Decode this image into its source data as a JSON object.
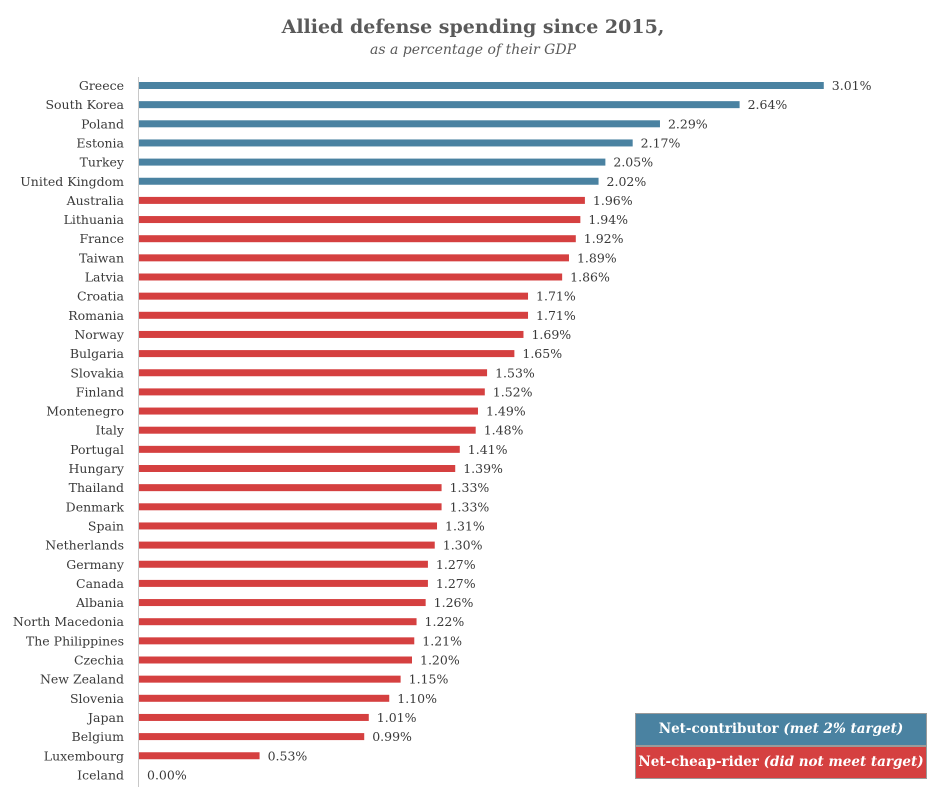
{
  "chart_data": {
    "type": "bar",
    "orientation": "horizontal",
    "title": "Allied defense spending since 2015,",
    "subtitle": "as a percentage of their GDP",
    "categories": [
      "Greece",
      "South Korea",
      "Poland",
      "Estonia",
      "Turkey",
      "United Kingdom",
      "Australia",
      "Lithuania",
      "France",
      "Taiwan",
      "Latvia",
      "Croatia",
      "Romania",
      "Norway",
      "Bulgaria",
      "Slovakia",
      "Finland",
      "Montenegro",
      "Italy",
      "Portugal",
      "Hungary",
      "Thailand",
      "Denmark",
      "Spain",
      "Netherlands",
      "Germany",
      "Canada",
      "Albania",
      "North Macedonia",
      "The Philippines",
      "Czechia",
      "New Zealand",
      "Slovenia",
      "Japan",
      "Belgium",
      "Luxembourg",
      "Iceland"
    ],
    "values": [
      3.01,
      2.64,
      2.29,
      2.17,
      2.05,
      2.02,
      1.96,
      1.94,
      1.92,
      1.89,
      1.86,
      1.71,
      1.71,
      1.69,
      1.65,
      1.53,
      1.52,
      1.49,
      1.48,
      1.41,
      1.39,
      1.33,
      1.33,
      1.31,
      1.3,
      1.27,
      1.27,
      1.26,
      1.22,
      1.21,
      1.2,
      1.15,
      1.1,
      1.01,
      0.99,
      0.53,
      0.0
    ],
    "value_labels": [
      "3.01%",
      "2.64%",
      "2.29%",
      "2.17%",
      "2.05%",
      "2.02%",
      "1.96%",
      "1.94%",
      "1.92%",
      "1.89%",
      "1.86%",
      "1.71%",
      "1.71%",
      "1.69%",
      "1.65%",
      "1.53%",
      "1.52%",
      "1.49%",
      "1.48%",
      "1.41%",
      "1.39%",
      "1.33%",
      "1.33%",
      "1.31%",
      "1.30%",
      "1.27%",
      "1.27%",
      "1.26%",
      "1.22%",
      "1.21%",
      "1.20%",
      "1.15%",
      "1.10%",
      "1.01%",
      "0.99%",
      "0.53%",
      "0.00%"
    ],
    "threshold": 2.0,
    "xlim": [
      0,
      3.35
    ],
    "grid": false,
    "legend_position": "bottom-right",
    "colors": {
      "contributor": "#4a82a1",
      "cheap_rider": "#d54040"
    },
    "legend": {
      "contributor": {
        "label": "Net-contributor",
        "note": "(met 2% target)"
      },
      "cheap_rider": {
        "label": "Net-cheap-rider",
        "note": "(did not meet target)"
      }
    }
  }
}
